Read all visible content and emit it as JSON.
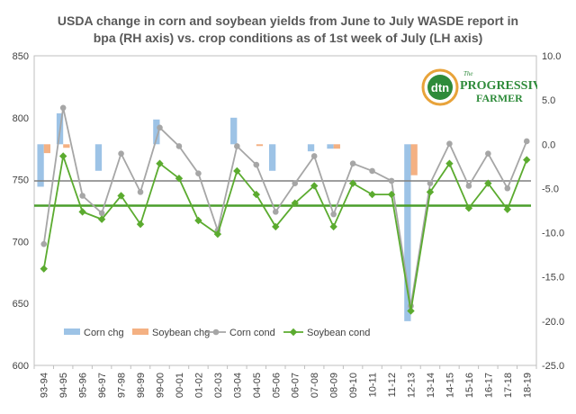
{
  "chart_data": {
    "type": "bar+line",
    "title_line1": "USDA  change in corn and soybean yields from June to July WASDE report in",
    "title_line2": "bpa (RH axis) vs. crop conditions as of 1st week of July (LH axis)",
    "categories": [
      "93-94",
      "94-95",
      "95-96",
      "96-97",
      "97-98",
      "98-99",
      "99-00",
      "00-01",
      "01-02",
      "02-03",
      "03-04",
      "04-05",
      "05-06",
      "06-07",
      "07-08",
      "08-09",
      "09-10",
      "10-11",
      "11-12",
      "12-13",
      "13-14",
      "14-15",
      "15-16",
      "16-17",
      "17-18",
      "18-19"
    ],
    "left_axis": {
      "ylim": [
        600,
        850
      ],
      "ticks": [
        "600",
        "650",
        "700",
        "750",
        "800",
        "850"
      ]
    },
    "right_axis": {
      "ylim": [
        -25,
        10
      ],
      "ticks": [
        "-25.0",
        "-20.0",
        "-15.0",
        "-10.0",
        "-5.0",
        "0.0",
        "5.0",
        "10.0"
      ]
    },
    "bar_series": [
      {
        "name": "Corn chg",
        "axis": "right",
        "color": "#9dc3e6",
        "values": [
          -4.8,
          3.5,
          0,
          -3.0,
          0,
          0,
          2.8,
          0,
          0,
          0,
          3.0,
          0,
          -3.0,
          0,
          -0.8,
          -0.5,
          0,
          0,
          0,
          -20.0,
          0,
          0,
          0,
          0,
          0,
          0
        ]
      },
      {
        "name": "Soybean chg",
        "axis": "right",
        "color": "#f4b183",
        "values": [
          -1.0,
          -0.4,
          0,
          0,
          0,
          0,
          0,
          0,
          0,
          0,
          0,
          -0.2,
          0,
          0,
          0,
          -0.5,
          0,
          0,
          0,
          -3.5,
          0,
          0,
          0,
          0,
          0,
          0
        ]
      }
    ],
    "line_series": [
      {
        "name": "Corn cond",
        "axis": "left",
        "color": "#a6a6a6",
        "values": [
          698,
          808,
          737,
          723,
          771,
          740,
          792,
          777,
          755,
          709,
          777,
          762,
          724,
          747,
          769,
          722,
          763,
          757,
          749,
          648,
          747,
          779,
          745,
          771,
          743,
          781
        ]
      },
      {
        "name": "Soybean cond",
        "axis": "left",
        "color": "#5bab2f",
        "values": [
          678,
          769,
          724,
          718,
          737,
          714,
          763,
          751,
          717,
          706,
          757,
          738,
          712,
          731,
          745,
          712,
          747,
          738,
          738,
          644,
          740,
          763,
          727,
          747,
          726,
          766
        ]
      }
    ],
    "reference_lines": [
      {
        "axis": "left",
        "value": 749,
        "color": "#7f7f7f"
      },
      {
        "axis": "left",
        "value": 729,
        "color": "#4a9e2b"
      }
    ],
    "legend_position": "bottom-left-inside",
    "grid": false
  },
  "logo": {
    "monogram": "dtn",
    "brand_top": "PROGRESSIVE",
    "brand_bottom": "FARMER",
    "prefix": "The"
  }
}
